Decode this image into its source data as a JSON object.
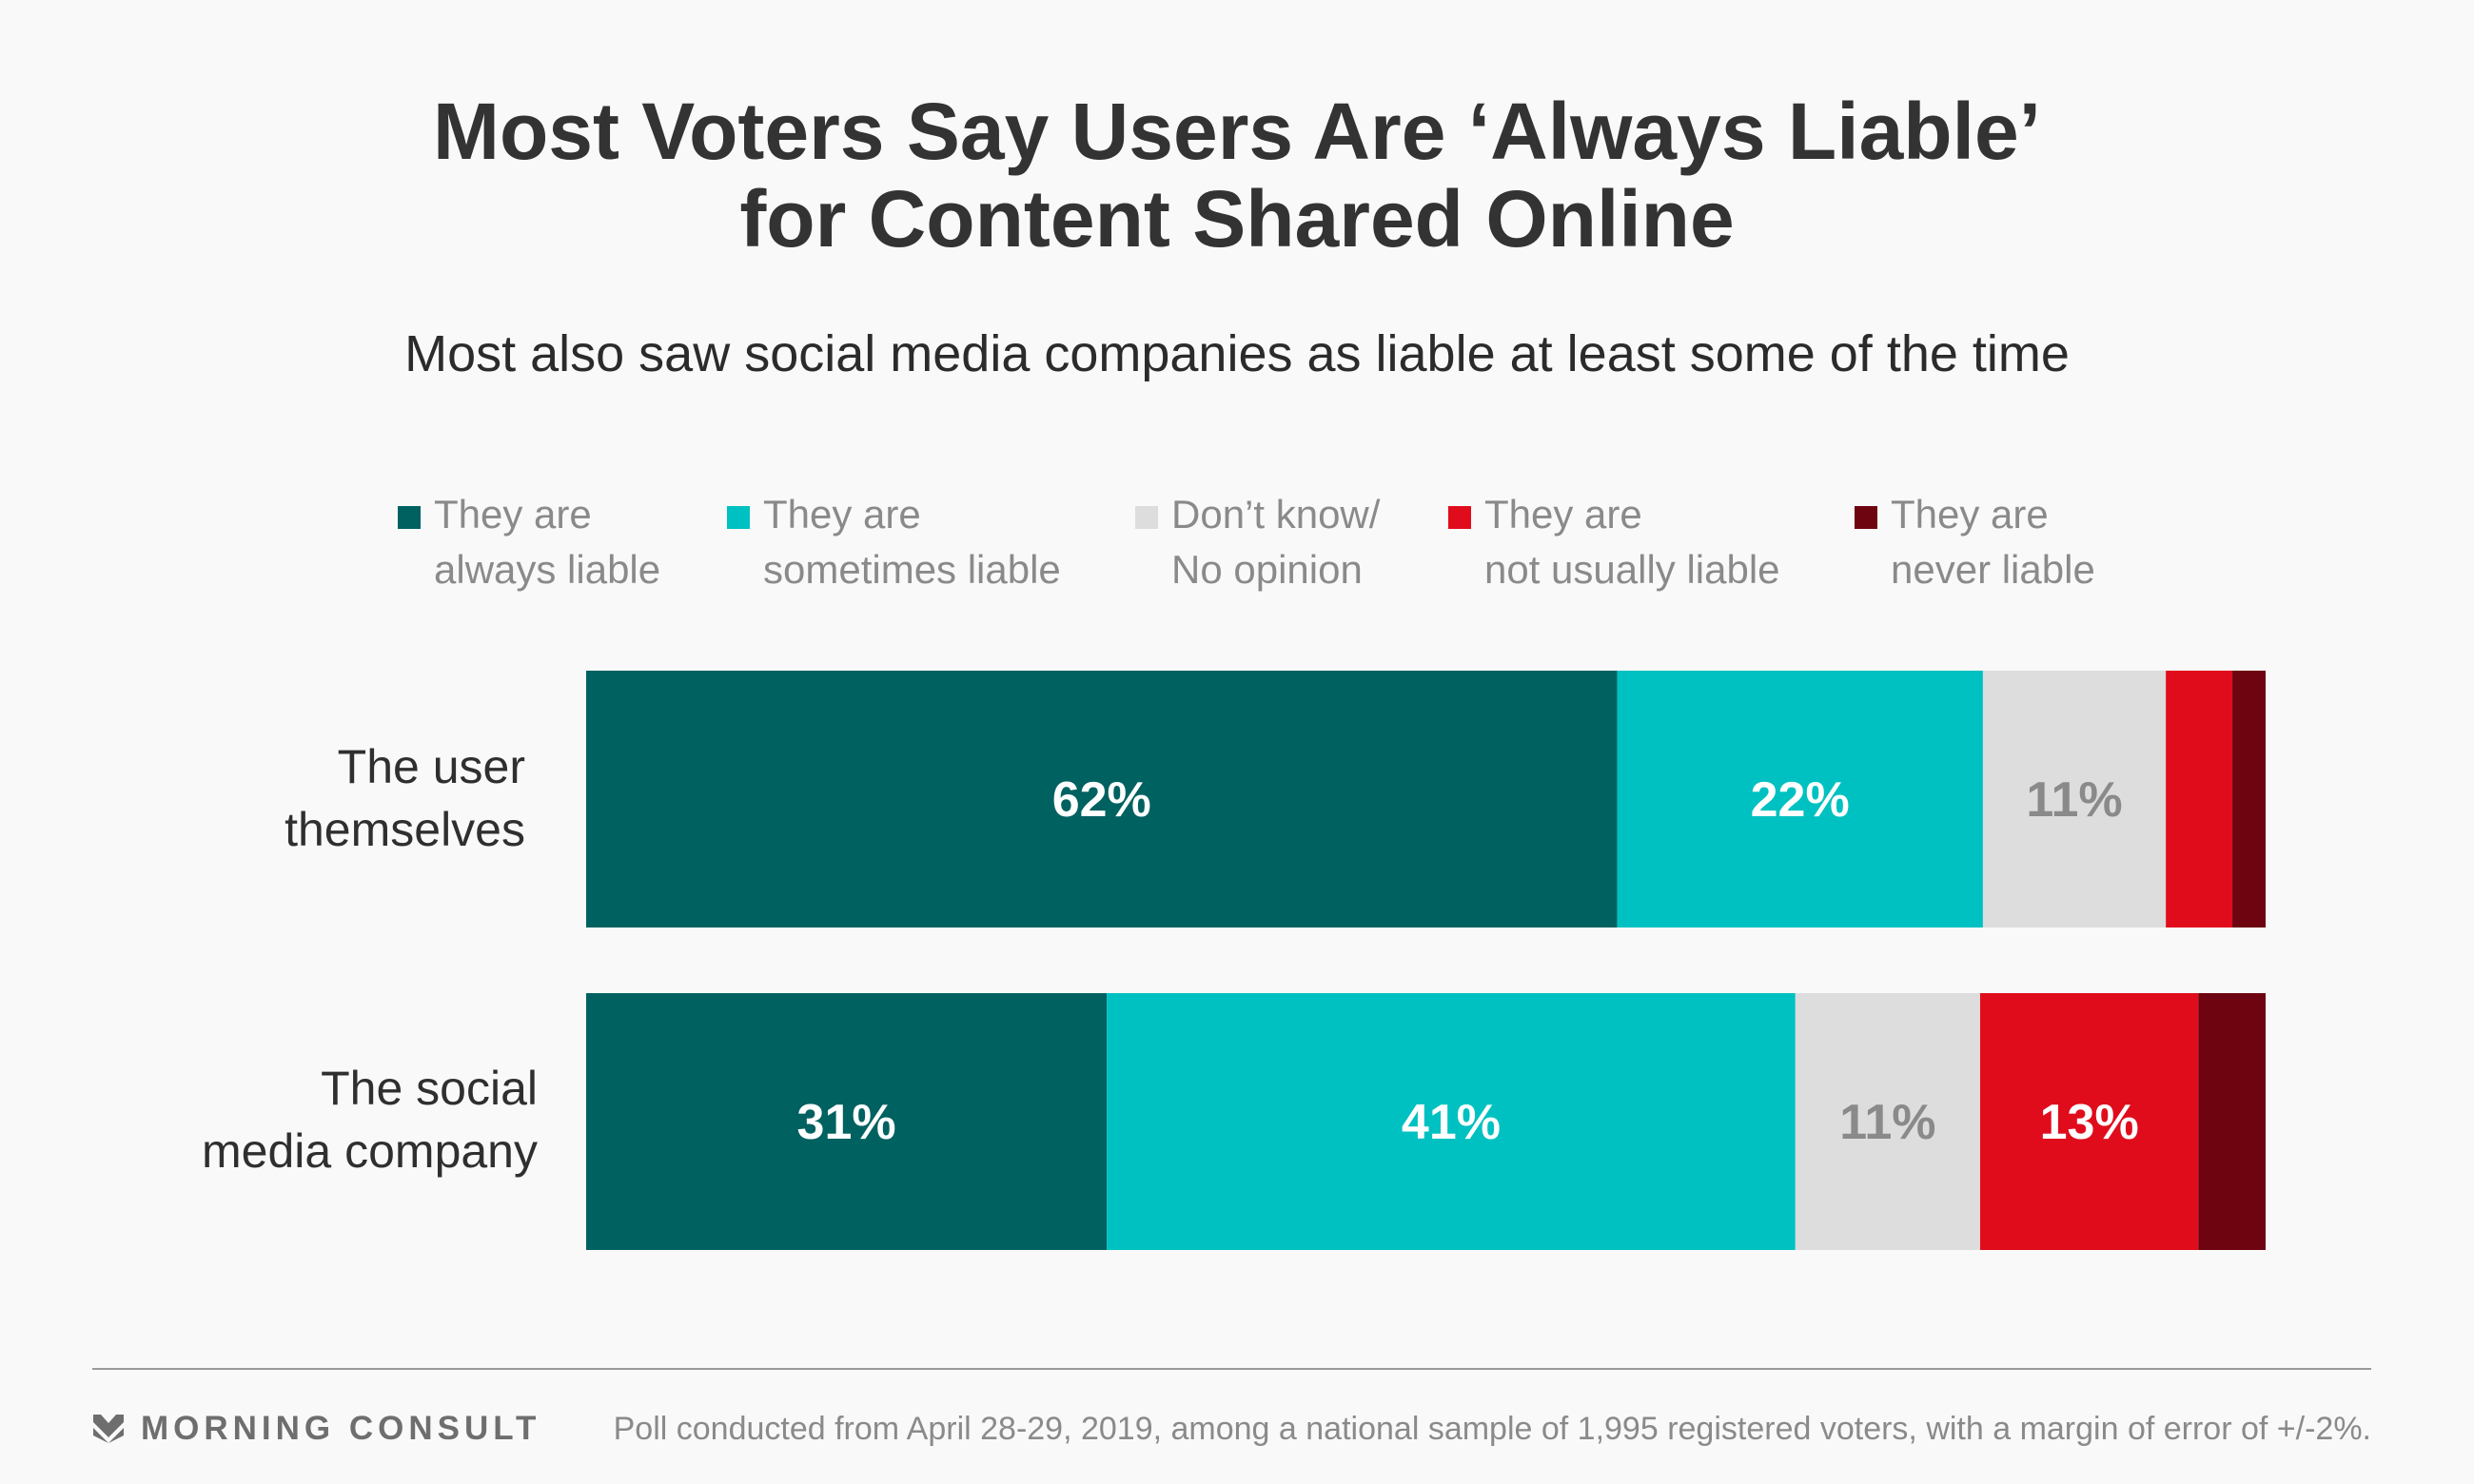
{
  "colors": {
    "always": "#006161",
    "sometimes": "#00c1c1",
    "dont_know": "#dddddd",
    "not_usually": "#e00c1c",
    "never": "#6d0410"
  },
  "legend": [
    {
      "key": "always",
      "line1": "They are",
      "line2": "always liable",
      "color": "#006161"
    },
    {
      "key": "sometimes",
      "line1": "They are",
      "line2": "sometimes liable",
      "color": "#00c1c1"
    },
    {
      "key": "dont_know",
      "line1": "Don’t know/",
      "line2": "No opinion",
      "color": "#dddddd"
    },
    {
      "key": "not_usually",
      "line1": "They are",
      "line2": "not usually liable",
      "color": "#e00c1c"
    },
    {
      "key": "never",
      "line1": "They are",
      "line2": "never liable",
      "color": "#6d0410"
    }
  ],
  "chart_data": {
    "type": "bar",
    "orientation": "horizontal",
    "stacked": true,
    "title": "Most Voters Say Users Are ‘Always Liable’ for Content Shared Online",
    "title_lines": [
      "Most Voters Say Users Are ‘Always Liable’",
      "for Content Shared Online"
    ],
    "subtitle": "Most also saw social media companies as liable at least some of the time",
    "categories": [
      "The user themselves",
      "The social media company"
    ],
    "category_lines": [
      [
        "The user",
        "themselves"
      ],
      [
        "The social",
        "media company"
      ]
    ],
    "series": [
      {
        "name": "They are always liable",
        "values": [
          62,
          31
        ],
        "labels": [
          "62%",
          "31%"
        ],
        "color": "#006161",
        "label_color": "#ffffff"
      },
      {
        "name": "They are sometimes liable",
        "values": [
          22,
          41
        ],
        "labels": [
          "22%",
          "41%"
        ],
        "color": "#00c1c1",
        "label_color": "#ffffff"
      },
      {
        "name": "Don’t know/No opinion",
        "values": [
          11,
          11
        ],
        "labels": [
          "11%",
          "11%"
        ],
        "color": "#dddddd",
        "label_color": "#8a8a8a"
      },
      {
        "name": "They are not usually liable",
        "values": [
          4,
          13
        ],
        "labels": [
          "",
          "13%"
        ],
        "color": "#e00c1c",
        "label_color": "#ffffff"
      },
      {
        "name": "They are never liable",
        "values": [
          2,
          4
        ],
        "labels": [
          "",
          ""
        ],
        "color": "#6d0410",
        "label_color": "#ffffff"
      }
    ],
    "xlim": [
      0,
      100
    ],
    "grid": false,
    "legend_position": "top"
  },
  "footer": {
    "brand": "MORNING CONSULT",
    "note": "Poll conducted from April 28-29, 2019, among a national sample of 1,995 registered voters, with a margin of error of +/-2%."
  }
}
